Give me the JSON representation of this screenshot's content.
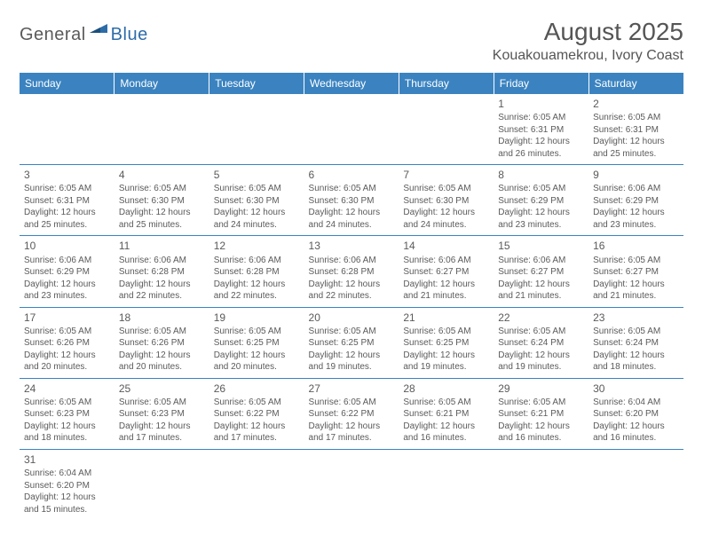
{
  "logo": {
    "general": "General",
    "blue": "Blue"
  },
  "title": "August 2025",
  "location": "Kouakouamekrou, Ivory Coast",
  "colors": {
    "header_bg": "#3b83c0",
    "header_text": "#ffffff",
    "grid_line": "#3b83c0",
    "text": "#5a5a5a",
    "logo_blue": "#2e6ca8",
    "background": "#ffffff"
  },
  "typography": {
    "title_fontsize": 28,
    "location_fontsize": 16,
    "dayheader_fontsize": 12,
    "daynum_fontsize": 12,
    "cell_fontsize": 10
  },
  "day_headers": [
    "Sunday",
    "Monday",
    "Tuesday",
    "Wednesday",
    "Thursday",
    "Friday",
    "Saturday"
  ],
  "weeks": [
    [
      null,
      null,
      null,
      null,
      null,
      {
        "n": "1",
        "sunrise": "Sunrise: 6:05 AM",
        "sunset": "Sunset: 6:31 PM",
        "day1": "Daylight: 12 hours",
        "day2": "and 26 minutes."
      },
      {
        "n": "2",
        "sunrise": "Sunrise: 6:05 AM",
        "sunset": "Sunset: 6:31 PM",
        "day1": "Daylight: 12 hours",
        "day2": "and 25 minutes."
      }
    ],
    [
      {
        "n": "3",
        "sunrise": "Sunrise: 6:05 AM",
        "sunset": "Sunset: 6:31 PM",
        "day1": "Daylight: 12 hours",
        "day2": "and 25 minutes."
      },
      {
        "n": "4",
        "sunrise": "Sunrise: 6:05 AM",
        "sunset": "Sunset: 6:30 PM",
        "day1": "Daylight: 12 hours",
        "day2": "and 25 minutes."
      },
      {
        "n": "5",
        "sunrise": "Sunrise: 6:05 AM",
        "sunset": "Sunset: 6:30 PM",
        "day1": "Daylight: 12 hours",
        "day2": "and 24 minutes."
      },
      {
        "n": "6",
        "sunrise": "Sunrise: 6:05 AM",
        "sunset": "Sunset: 6:30 PM",
        "day1": "Daylight: 12 hours",
        "day2": "and 24 minutes."
      },
      {
        "n": "7",
        "sunrise": "Sunrise: 6:05 AM",
        "sunset": "Sunset: 6:30 PM",
        "day1": "Daylight: 12 hours",
        "day2": "and 24 minutes."
      },
      {
        "n": "8",
        "sunrise": "Sunrise: 6:05 AM",
        "sunset": "Sunset: 6:29 PM",
        "day1": "Daylight: 12 hours",
        "day2": "and 23 minutes."
      },
      {
        "n": "9",
        "sunrise": "Sunrise: 6:06 AM",
        "sunset": "Sunset: 6:29 PM",
        "day1": "Daylight: 12 hours",
        "day2": "and 23 minutes."
      }
    ],
    [
      {
        "n": "10",
        "sunrise": "Sunrise: 6:06 AM",
        "sunset": "Sunset: 6:29 PM",
        "day1": "Daylight: 12 hours",
        "day2": "and 23 minutes."
      },
      {
        "n": "11",
        "sunrise": "Sunrise: 6:06 AM",
        "sunset": "Sunset: 6:28 PM",
        "day1": "Daylight: 12 hours",
        "day2": "and 22 minutes."
      },
      {
        "n": "12",
        "sunrise": "Sunrise: 6:06 AM",
        "sunset": "Sunset: 6:28 PM",
        "day1": "Daylight: 12 hours",
        "day2": "and 22 minutes."
      },
      {
        "n": "13",
        "sunrise": "Sunrise: 6:06 AM",
        "sunset": "Sunset: 6:28 PM",
        "day1": "Daylight: 12 hours",
        "day2": "and 22 minutes."
      },
      {
        "n": "14",
        "sunrise": "Sunrise: 6:06 AM",
        "sunset": "Sunset: 6:27 PM",
        "day1": "Daylight: 12 hours",
        "day2": "and 21 minutes."
      },
      {
        "n": "15",
        "sunrise": "Sunrise: 6:06 AM",
        "sunset": "Sunset: 6:27 PM",
        "day1": "Daylight: 12 hours",
        "day2": "and 21 minutes."
      },
      {
        "n": "16",
        "sunrise": "Sunrise: 6:05 AM",
        "sunset": "Sunset: 6:27 PM",
        "day1": "Daylight: 12 hours",
        "day2": "and 21 minutes."
      }
    ],
    [
      {
        "n": "17",
        "sunrise": "Sunrise: 6:05 AM",
        "sunset": "Sunset: 6:26 PM",
        "day1": "Daylight: 12 hours",
        "day2": "and 20 minutes."
      },
      {
        "n": "18",
        "sunrise": "Sunrise: 6:05 AM",
        "sunset": "Sunset: 6:26 PM",
        "day1": "Daylight: 12 hours",
        "day2": "and 20 minutes."
      },
      {
        "n": "19",
        "sunrise": "Sunrise: 6:05 AM",
        "sunset": "Sunset: 6:25 PM",
        "day1": "Daylight: 12 hours",
        "day2": "and 20 minutes."
      },
      {
        "n": "20",
        "sunrise": "Sunrise: 6:05 AM",
        "sunset": "Sunset: 6:25 PM",
        "day1": "Daylight: 12 hours",
        "day2": "and 19 minutes."
      },
      {
        "n": "21",
        "sunrise": "Sunrise: 6:05 AM",
        "sunset": "Sunset: 6:25 PM",
        "day1": "Daylight: 12 hours",
        "day2": "and 19 minutes."
      },
      {
        "n": "22",
        "sunrise": "Sunrise: 6:05 AM",
        "sunset": "Sunset: 6:24 PM",
        "day1": "Daylight: 12 hours",
        "day2": "and 19 minutes."
      },
      {
        "n": "23",
        "sunrise": "Sunrise: 6:05 AM",
        "sunset": "Sunset: 6:24 PM",
        "day1": "Daylight: 12 hours",
        "day2": "and 18 minutes."
      }
    ],
    [
      {
        "n": "24",
        "sunrise": "Sunrise: 6:05 AM",
        "sunset": "Sunset: 6:23 PM",
        "day1": "Daylight: 12 hours",
        "day2": "and 18 minutes."
      },
      {
        "n": "25",
        "sunrise": "Sunrise: 6:05 AM",
        "sunset": "Sunset: 6:23 PM",
        "day1": "Daylight: 12 hours",
        "day2": "and 17 minutes."
      },
      {
        "n": "26",
        "sunrise": "Sunrise: 6:05 AM",
        "sunset": "Sunset: 6:22 PM",
        "day1": "Daylight: 12 hours",
        "day2": "and 17 minutes."
      },
      {
        "n": "27",
        "sunrise": "Sunrise: 6:05 AM",
        "sunset": "Sunset: 6:22 PM",
        "day1": "Daylight: 12 hours",
        "day2": "and 17 minutes."
      },
      {
        "n": "28",
        "sunrise": "Sunrise: 6:05 AM",
        "sunset": "Sunset: 6:21 PM",
        "day1": "Daylight: 12 hours",
        "day2": "and 16 minutes."
      },
      {
        "n": "29",
        "sunrise": "Sunrise: 6:05 AM",
        "sunset": "Sunset: 6:21 PM",
        "day1": "Daylight: 12 hours",
        "day2": "and 16 minutes."
      },
      {
        "n": "30",
        "sunrise": "Sunrise: 6:04 AM",
        "sunset": "Sunset: 6:20 PM",
        "day1": "Daylight: 12 hours",
        "day2": "and 16 minutes."
      }
    ],
    [
      {
        "n": "31",
        "sunrise": "Sunrise: 6:04 AM",
        "sunset": "Sunset: 6:20 PM",
        "day1": "Daylight: 12 hours",
        "day2": "and 15 minutes."
      },
      null,
      null,
      null,
      null,
      null,
      null
    ]
  ]
}
